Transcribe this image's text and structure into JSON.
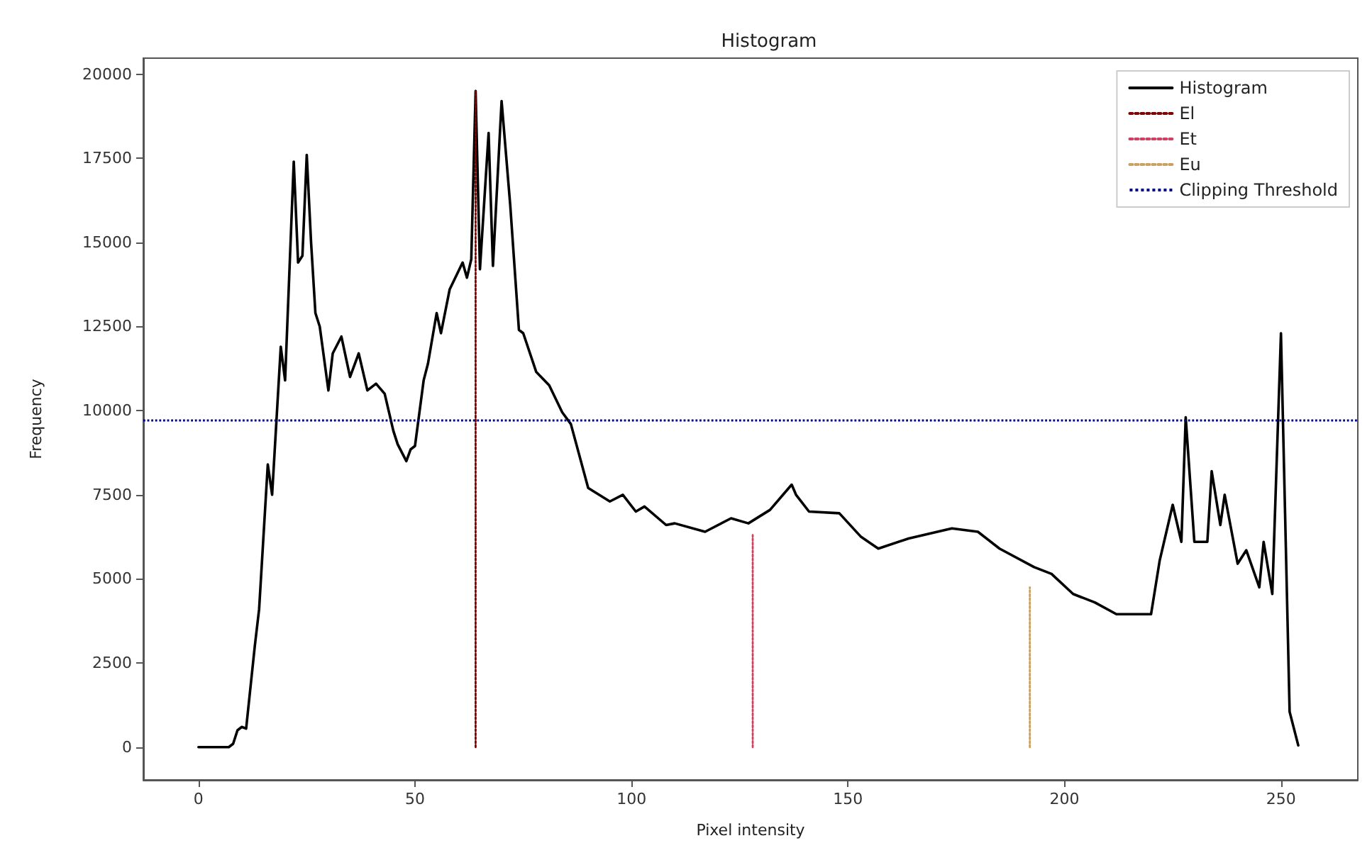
{
  "chart_data": {
    "type": "line",
    "title": "Histogram",
    "xlabel": "Pixel intensity",
    "ylabel": "Frequency",
    "xlim": [
      -12.75,
      267.75
    ],
    "xticks": [
      0,
      50,
      100,
      150,
      200,
      250
    ],
    "ylim": [
      -975,
      20475
    ],
    "yticks": [
      0,
      2500,
      5000,
      7500,
      10000,
      12500,
      15000,
      17500,
      20000
    ],
    "grid": false,
    "legend": "top right",
    "marker": "none",
    "series": [
      {
        "name": "Histogram",
        "color": "#000000",
        "line_style": "solid",
        "x": [
          0,
          7,
          8,
          9,
          10,
          11,
          13,
          14,
          16,
          17,
          19,
          20,
          22,
          23,
          24,
          25,
          26,
          27,
          28,
          30,
          31,
          33,
          35,
          37,
          39,
          41,
          43,
          45,
          46,
          48,
          49,
          50,
          52,
          53,
          55,
          56,
          58,
          61,
          62,
          63,
          64,
          65,
          67,
          68,
          70,
          72,
          74,
          75,
          78,
          81,
          84,
          86,
          90,
          95,
          98,
          101,
          103,
          108,
          110,
          117,
          123,
          127,
          132,
          137,
          138,
          141,
          148,
          153,
          157,
          164,
          174,
          180,
          185,
          193,
          197,
          202,
          207,
          212,
          220,
          222,
          225,
          227,
          228,
          230,
          233,
          234,
          236,
          237,
          240,
          242,
          245,
          246,
          248,
          250,
          252,
          254
        ],
        "values": [
          0,
          0,
          100,
          500,
          600,
          550,
          3000,
          4100,
          8400,
          7500,
          11900,
          10900,
          17400,
          14400,
          14600,
          17600,
          15000,
          12900,
          12500,
          10600,
          11700,
          12200,
          11000,
          11700,
          10600,
          10800,
          10500,
          9400,
          9000,
          8500,
          8850,
          8950,
          10900,
          11400,
          12900,
          12300,
          13600,
          14400,
          13950,
          14500,
          19500,
          14200,
          18250,
          14300,
          19200,
          16100,
          12400,
          12300,
          11150,
          10750,
          9950,
          9600,
          7700,
          7300,
          7500,
          7000,
          7150,
          6600,
          6650,
          6400,
          6800,
          6650,
          7050,
          7800,
          7500,
          7000,
          6950,
          6250,
          5900,
          6200,
          6500,
          6400,
          5900,
          5350,
          5150,
          4550,
          4300,
          3950,
          3950,
          5550,
          7200,
          6100,
          9800,
          6100,
          6100,
          8200,
          6600,
          7500,
          5450,
          5850,
          4750,
          6100,
          4550,
          12300,
          1050,
          50
        ]
      },
      {
        "name": "El",
        "color": "#800000",
        "line_style": "dotted",
        "x": [
          64,
          64
        ],
        "values": [
          0,
          19500
        ]
      },
      {
        "name": "Et",
        "color": "#d04060",
        "line_style": "dotted",
        "x": [
          128,
          128
        ],
        "values": [
          0,
          6300
        ]
      },
      {
        "name": "Eu",
        "color": "#c8a060",
        "line_style": "dotted",
        "x": [
          192,
          192
        ],
        "values": [
          0,
          4750
        ]
      }
    ],
    "ref_lines": [
      {
        "axis": "y",
        "value": 9700,
        "label": "Clipping Threshold",
        "color": "#00008b",
        "line_style": "dotted"
      }
    ]
  }
}
